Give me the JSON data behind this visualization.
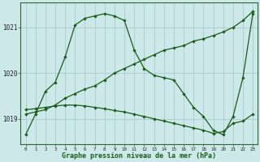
{
  "bg_color": "#cce8e8",
  "grid_color": "#aacccc",
  "line_color": "#1a5c1a",
  "title": "Graphe pression niveau de la mer (hPa)",
  "xlim": [
    -0.5,
    23.5
  ],
  "ylim": [
    1018.45,
    1021.55
  ],
  "yticks": [
    1019,
    1020,
    1021
  ],
  "ytick_labels": [
    "1019",
    "1020",
    "1021"
  ],
  "xticks": [
    0,
    1,
    2,
    3,
    4,
    5,
    6,
    7,
    8,
    9,
    10,
    11,
    12,
    13,
    14,
    15,
    16,
    17,
    18,
    19,
    20,
    21,
    22,
    23
  ],
  "series": [
    {
      "x": [
        0,
        1,
        2,
        3,
        4,
        5,
        6,
        7,
        8,
        9,
        10,
        11,
        12,
        13,
        14,
        15,
        16,
        17,
        18,
        19,
        20,
        21,
        22,
        23
      ],
      "y": [
        1018.65,
        1019.1,
        1019.6,
        1019.8,
        1020.35,
        1021.05,
        1021.2,
        1021.25,
        1021.3,
        1021.25,
        1021.15,
        1020.5,
        1020.1,
        1019.95,
        1019.9,
        1019.85,
        1019.55,
        1019.25,
        1019.05,
        1018.75,
        1018.65,
        1019.05,
        1019.9,
        1021.3
      ]
    },
    {
      "x": [
        0,
        1,
        2,
        3,
        4,
        5,
        6,
        7,
        8,
        9,
        10,
        11,
        12,
        13,
        14,
        15,
        16,
        17,
        18,
        19,
        20,
        21,
        22,
        23
      ],
      "y": [
        1019.1,
        1019.15,
        1019.2,
        1019.3,
        1019.45,
        1019.55,
        1019.65,
        1019.72,
        1019.85,
        1020.0,
        1020.1,
        1020.2,
        1020.3,
        1020.4,
        1020.5,
        1020.55,
        1020.6,
        1020.7,
        1020.75,
        1020.82,
        1020.9,
        1021.0,
        1021.15,
        1021.35
      ]
    },
    {
      "x": [
        0,
        1,
        2,
        3,
        4,
        5,
        6,
        7,
        8,
        9,
        10,
        11,
        12,
        13,
        14,
        15,
        16,
        17,
        18,
        19,
        20,
        21,
        22,
        23
      ],
      "y": [
        1019.2,
        1019.22,
        1019.25,
        1019.28,
        1019.3,
        1019.3,
        1019.28,
        1019.25,
        1019.22,
        1019.18,
        1019.15,
        1019.1,
        1019.05,
        1019.0,
        1018.95,
        1018.9,
        1018.85,
        1018.8,
        1018.75,
        1018.68,
        1018.72,
        1018.9,
        1018.95,
        1019.1
      ]
    }
  ]
}
